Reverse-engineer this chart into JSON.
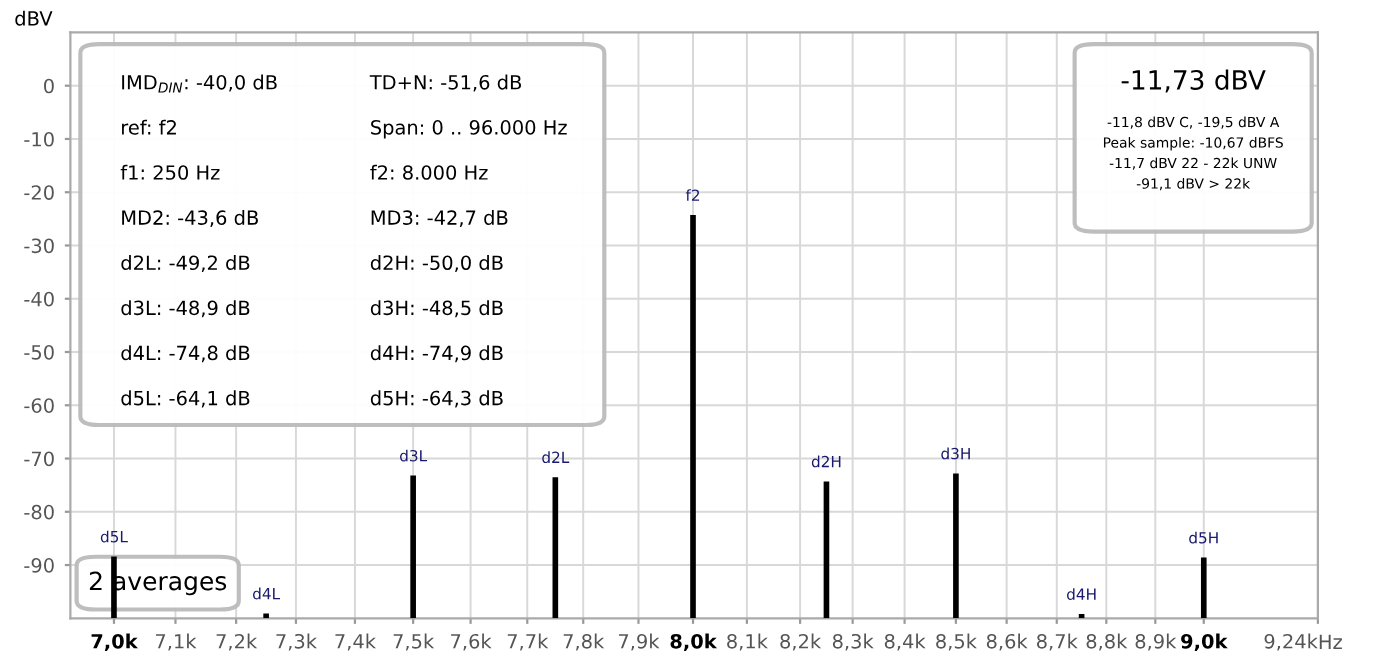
{
  "chart_data": {
    "type": "bar",
    "ylabel": "dBV",
    "xlabel": "Hz",
    "x": [
      7000,
      7250,
      7500,
      7750,
      8000,
      8250,
      8500,
      8750,
      9000
    ],
    "series": [
      {
        "color": "#000000",
        "values": [
          11.6,
          0.9,
          26.8,
          26.5,
          75.7,
          25.7,
          27.2,
          0.8,
          11.4
        ],
        "base": [
          -100,
          -100,
          -100,
          -100,
          -100,
          -100,
          -100,
          -100,
          -100
        ]
      }
    ],
    "log": "x",
    "xlim": [
      6930,
      9240
    ],
    "xticks": [
      {
        "value": 7000,
        "label": "7,0k"
      },
      {
        "value": 7100,
        "label": "7,1k"
      },
      {
        "value": 7200,
        "label": "7,2k"
      },
      {
        "value": 7300,
        "label": "7,3k"
      },
      {
        "value": 7400,
        "label": "7,4k"
      },
      {
        "value": 7500,
        "label": "7,5k"
      },
      {
        "value": 7600,
        "label": "7,6k"
      },
      {
        "value": 7700,
        "label": "7,7k"
      },
      {
        "value": 7800,
        "label": "7,8k"
      },
      {
        "value": 7900,
        "label": "7,9k"
      },
      {
        "value": 8000,
        "label": "8,0k"
      },
      {
        "value": 8100,
        "label": "8,1k"
      },
      {
        "value": 8200,
        "label": "8,2k"
      },
      {
        "value": 8300,
        "label": "8,3k"
      },
      {
        "value": 8400,
        "label": "8,4k"
      },
      {
        "value": 8500,
        "label": "8,5k"
      },
      {
        "value": 8600,
        "label": "8,6k"
      },
      {
        "value": 8700,
        "label": "8,7k"
      },
      {
        "value": 8800,
        "label": "8,8k"
      },
      {
        "value": 8900,
        "label": "8,9k"
      },
      {
        "value": 9000,
        "label": "9,0k"
      },
      {
        "value": 9240,
        "label": "9,24k"
      }
    ],
    "ylim": [
      -100,
      10
    ],
    "yticks": [
      0,
      -10,
      -20,
      -30,
      -40,
      -50,
      -60,
      -70,
      -80,
      -90
    ],
    "grid": true,
    "annotations": [
      "IMD$_{DIN}$: -40,0 dB",
      "TD+N: -51,6 dB",
      "ref: f2",
      "Span: 0 .. 96.000 Hz",
      "f1: 250 Hz",
      "f2: 8.000 Hz",
      "MD2: -43,6 dB",
      "MD3: -42,7 dB",
      "d2L: -49,2 dB",
      "d2H: -50,0 dB",
      "d3L: -48,9 dB",
      "d3H: -48,5 dB",
      "d4L: -74,8 dB",
      "d4H: -74,9 dB",
      "d5L: -64,1 dB",
      "d5H: -64,3 dB",
      "-11,73 dBV",
      "-11,8 dBV C, -19,5 dBV A",
      "Peak sample: -10,67 dBFS",
      "-11,7 dBV 22 - 22k UNW",
      "-91,1 dBV > 22k",
      "2 averages",
      {
        "text": "d5L",
        "x": 7000,
        "y": -88.4
      },
      {
        "text": "d4L",
        "x": 7250,
        "y": -99.1
      },
      {
        "text": "d3L",
        "x": 7500,
        "y": -73.2
      },
      {
        "text": "d2L",
        "x": 7750,
        "y": -73.5
      },
      {
        "text": "f2",
        "x": 8000,
        "y": -24.3
      },
      {
        "text": "d2H",
        "x": 8250,
        "y": -74.3
      },
      {
        "text": "d3H",
        "x": 8500,
        "y": -72.8
      },
      {
        "text": "d4H",
        "x": 8750,
        "y": -99.2
      },
      {
        "text": "d5H",
        "x": 9000,
        "y": -88.6
      }
    ]
  }
}
